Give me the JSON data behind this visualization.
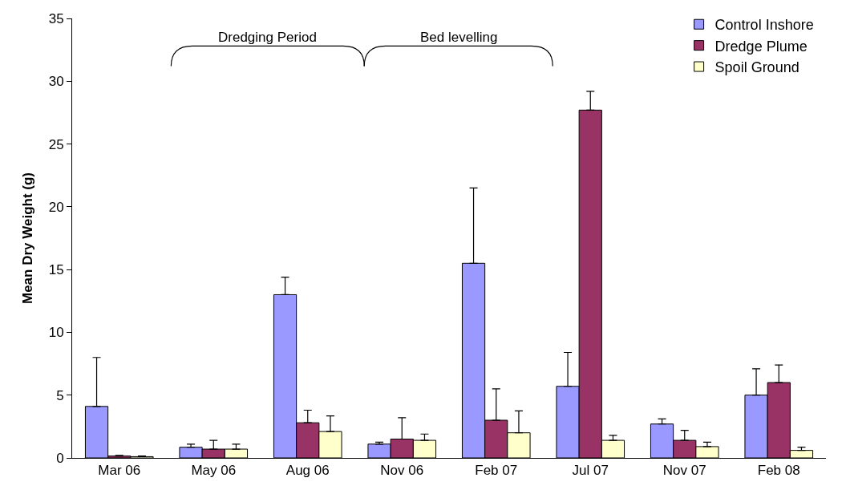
{
  "chart_data": {
    "type": "bar",
    "ylabel": "Mean Dry Weight (g)",
    "categories": [
      "Mar 06",
      "May 06",
      "Aug 06",
      "Nov 06",
      "Feb 07",
      "Jul 07",
      "Nov 07",
      "Feb 08"
    ],
    "series": [
      {
        "name": "Control Inshore",
        "color": "#9999ff",
        "values": [
          4.1,
          0.85,
          13.0,
          1.1,
          15.5,
          5.7,
          2.7,
          5.0
        ],
        "errors": [
          [
            4.1,
            8.0
          ],
          [
            0.85,
            1.1
          ],
          [
            13.0,
            14.4
          ],
          [
            1.1,
            1.25
          ],
          [
            15.5,
            21.5
          ],
          [
            5.7,
            8.4
          ],
          [
            2.7,
            3.1
          ],
          [
            5.0,
            7.1
          ]
        ]
      },
      {
        "name": "Dredge Plume",
        "color": "#993366",
        "values": [
          0.15,
          0.7,
          2.8,
          1.5,
          3.0,
          27.7,
          1.4,
          6.0
        ],
        "errors": [
          [
            0.15,
            0.2
          ],
          [
            0.7,
            1.4
          ],
          [
            2.8,
            3.8
          ],
          [
            1.5,
            3.2
          ],
          [
            3.0,
            5.5
          ],
          [
            27.7,
            29.2
          ],
          [
            1.4,
            2.2
          ],
          [
            6.0,
            7.4
          ]
        ]
      },
      {
        "name": "Spoil Ground",
        "color": "#ffffcc",
        "values": [
          0.1,
          0.7,
          2.1,
          1.4,
          2.0,
          1.4,
          0.9,
          0.6
        ],
        "errors": [
          [
            0.1,
            0.15
          ],
          [
            0.7,
            1.1
          ],
          [
            2.1,
            3.35
          ],
          [
            1.4,
            1.9
          ],
          [
            2.0,
            3.75
          ],
          [
            1.4,
            1.8
          ],
          [
            0.9,
            1.25
          ],
          [
            0.6,
            0.85
          ]
        ]
      }
    ],
    "annotations": [
      "Dredging Period",
      "Bed levelling"
    ],
    "ylim": [
      0,
      35
    ],
    "yticks": [
      0,
      5,
      10,
      15,
      20,
      25,
      30,
      35
    ],
    "legend": "top right"
  }
}
